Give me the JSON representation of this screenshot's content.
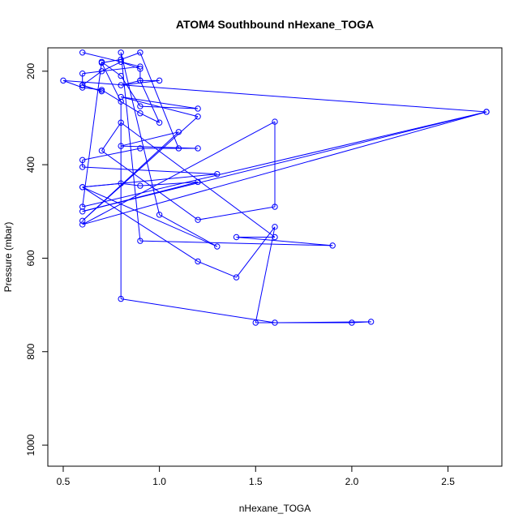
{
  "chart_data": {
    "type": "line",
    "title": "ATOM4 Southbound nHexane_TOGA",
    "xlabel": "nHexane_TOGA",
    "ylabel": "Pressure (mbar)",
    "xlim": [
      0.42,
      2.78
    ],
    "ylim": [
      1045,
      150
    ],
    "y_inverted": true,
    "x_ticks": [
      0.5,
      1.0,
      1.5,
      2.0,
      2.5
    ],
    "x_tick_labels": [
      "0.5",
      "1.0",
      "1.5",
      "2.0",
      "2.5"
    ],
    "y_ticks": [
      200,
      400,
      600,
      800,
      1000
    ],
    "y_tick_labels": [
      "200",
      "400",
      "600",
      "800",
      "1000"
    ],
    "grid": false,
    "marker": "open-circle",
    "series": [
      {
        "name": "nHexane_TOGA",
        "color": "#0000FF",
        "x": [
          0.6,
          0.9,
          0.6,
          0.6,
          0.7,
          0.6,
          0.7,
          0.8,
          0.9,
          0.9,
          0.8,
          1.0,
          0.9,
          1.0,
          0.9,
          0.7,
          0.6,
          0.5,
          2.7,
          0.6,
          0.7,
          0.8,
          0.9,
          1.2,
          0.8,
          1.2,
          0.6,
          1.1,
          0.8,
          1.2,
          0.9,
          0.6,
          0.6,
          1.3,
          0.6,
          0.8,
          0.9,
          1.2,
          0.6,
          2.7,
          0.6,
          1.6,
          1.6,
          1.2,
          0.7,
          0.8,
          1.6,
          1.4,
          1.9,
          0.9,
          0.8,
          1.0,
          1.3,
          0.6,
          1.2,
          1.4,
          1.6,
          1.5,
          2.0,
          2.1,
          1.6,
          0.8,
          0.8,
          0.7,
          0.8,
          0.9,
          1.1
        ],
        "y": [
          160,
          190,
          205,
          230,
          243,
          230,
          200,
          180,
          195,
          220,
          230,
          220,
          220,
          310,
          290,
          240,
          235,
          220,
          287,
          490,
          180,
          210,
          275,
          280,
          255,
          297,
          520,
          330,
          360,
          365,
          365,
          390,
          405,
          420,
          448,
          440,
          445,
          437,
          500,
          287,
          528,
          308,
          490,
          518,
          370,
          310,
          555,
          555,
          573,
          563,
          160,
          507,
          575,
          448,
          607,
          641,
          533,
          738,
          738,
          736,
          738,
          687,
          265,
          182,
          175,
          160,
          365
        ]
      }
    ]
  }
}
